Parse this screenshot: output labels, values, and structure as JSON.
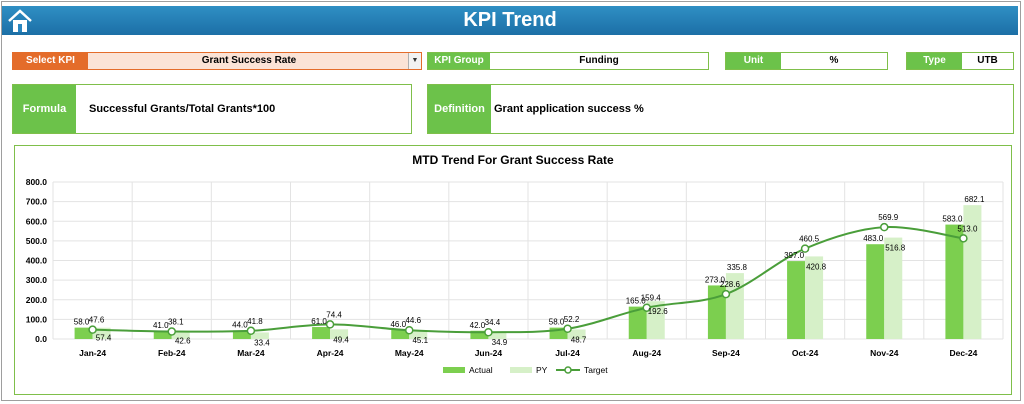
{
  "header": {
    "title": "KPI Trend"
  },
  "filters": {
    "select_kpi_label": "Select KPI",
    "select_kpi_value": "Grant Success Rate",
    "kpi_group_label": "KPI Group",
    "kpi_group_value": "Funding",
    "unit_label": "Unit",
    "unit_value": "%",
    "type_label": "Type",
    "type_value": "UTB"
  },
  "formula": {
    "label": "Formula",
    "value": "Successful Grants/Total Grants*100"
  },
  "definition": {
    "label": "Definition",
    "value": "Grant application success %"
  },
  "colors": {
    "actual": "#7ccf4f",
    "py": "#d6f0c8",
    "target": "#4a9e3a",
    "title_bar": "#2180b8",
    "label_green": "#6cc24a",
    "select_orange": "#e46c2a"
  },
  "chart_data": {
    "type": "bar",
    "title": "MTD Trend For Grant Success Rate",
    "categories": [
      "Jan-24",
      "Feb-24",
      "Mar-24",
      "Apr-24",
      "May-24",
      "Jun-24",
      "Jul-24",
      "Aug-24",
      "Sep-24",
      "Oct-24",
      "Nov-24",
      "Dec-24"
    ],
    "ylim": [
      0,
      800
    ],
    "yticks": [
      "0.0",
      "100.0",
      "200.0",
      "300.0",
      "400.0",
      "500.0",
      "600.0",
      "700.0",
      "800.0"
    ],
    "series": [
      {
        "name": "Actual",
        "type": "bar",
        "values": [
          58.0,
          41.0,
          44.0,
          61.0,
          46.0,
          42.0,
          58.0,
          165.0,
          273.0,
          397.0,
          483.0,
          583.0
        ]
      },
      {
        "name": "PY",
        "type": "bar",
        "values": [
          57.4,
          42.6,
          33.4,
          49.4,
          45.1,
          34.9,
          48.7,
          192.6,
          335.8,
          420.8,
          516.8,
          682.1
        ]
      },
      {
        "name": "Target",
        "type": "line",
        "values": [
          47.6,
          38.1,
          41.8,
          74.4,
          44.6,
          34.4,
          52.2,
          159.4,
          228.6,
          460.5,
          569.9,
          513.0
        ]
      }
    ],
    "grid": true,
    "legend": "bottom"
  }
}
